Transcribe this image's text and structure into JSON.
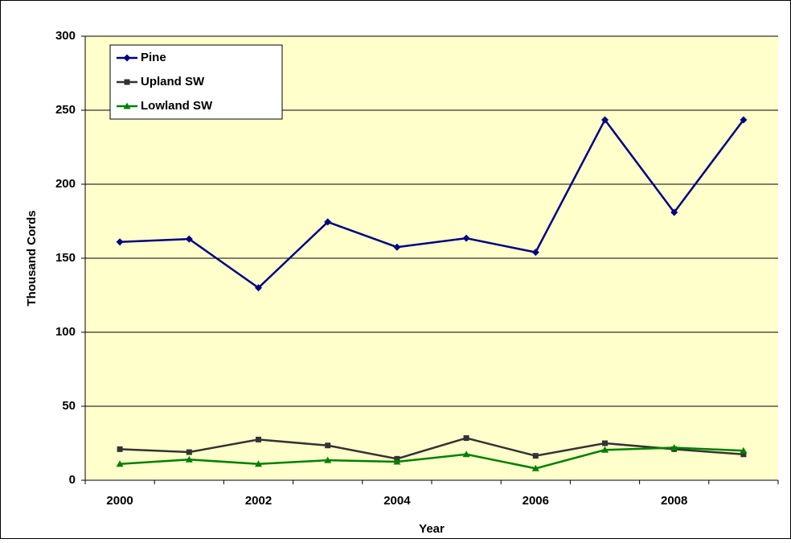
{
  "chart_data": {
    "type": "line",
    "y_label": "Thousand Cords",
    "x_label": "Year",
    "categories": [
      "2000",
      null,
      "2002",
      null,
      "2004",
      null,
      "2006",
      null,
      "2008",
      null
    ],
    "series": [
      {
        "name": "Pine",
        "color": "#000080",
        "marker": "diamond",
        "values": [
          161,
          163,
          130,
          174.5,
          157.5,
          163.5,
          154,
          243.5,
          181,
          243.5
        ]
      },
      {
        "name": "Upland SW",
        "color": "#333333",
        "marker": "square",
        "values": [
          21,
          19,
          27.5,
          23.5,
          14.5,
          28.5,
          16.5,
          25,
          21,
          17.5
        ]
      },
      {
        "name": "Lowland SW",
        "color": "#008000",
        "marker": "triangle",
        "values": [
          11,
          14,
          11,
          13.5,
          12.5,
          17.5,
          8,
          20.5,
          22,
          20
        ]
      }
    ],
    "ylim": [
      0,
      300
    ],
    "yticks": [
      0,
      50,
      100,
      150,
      200,
      250,
      300
    ],
    "grid": true,
    "legend": "top-left"
  }
}
